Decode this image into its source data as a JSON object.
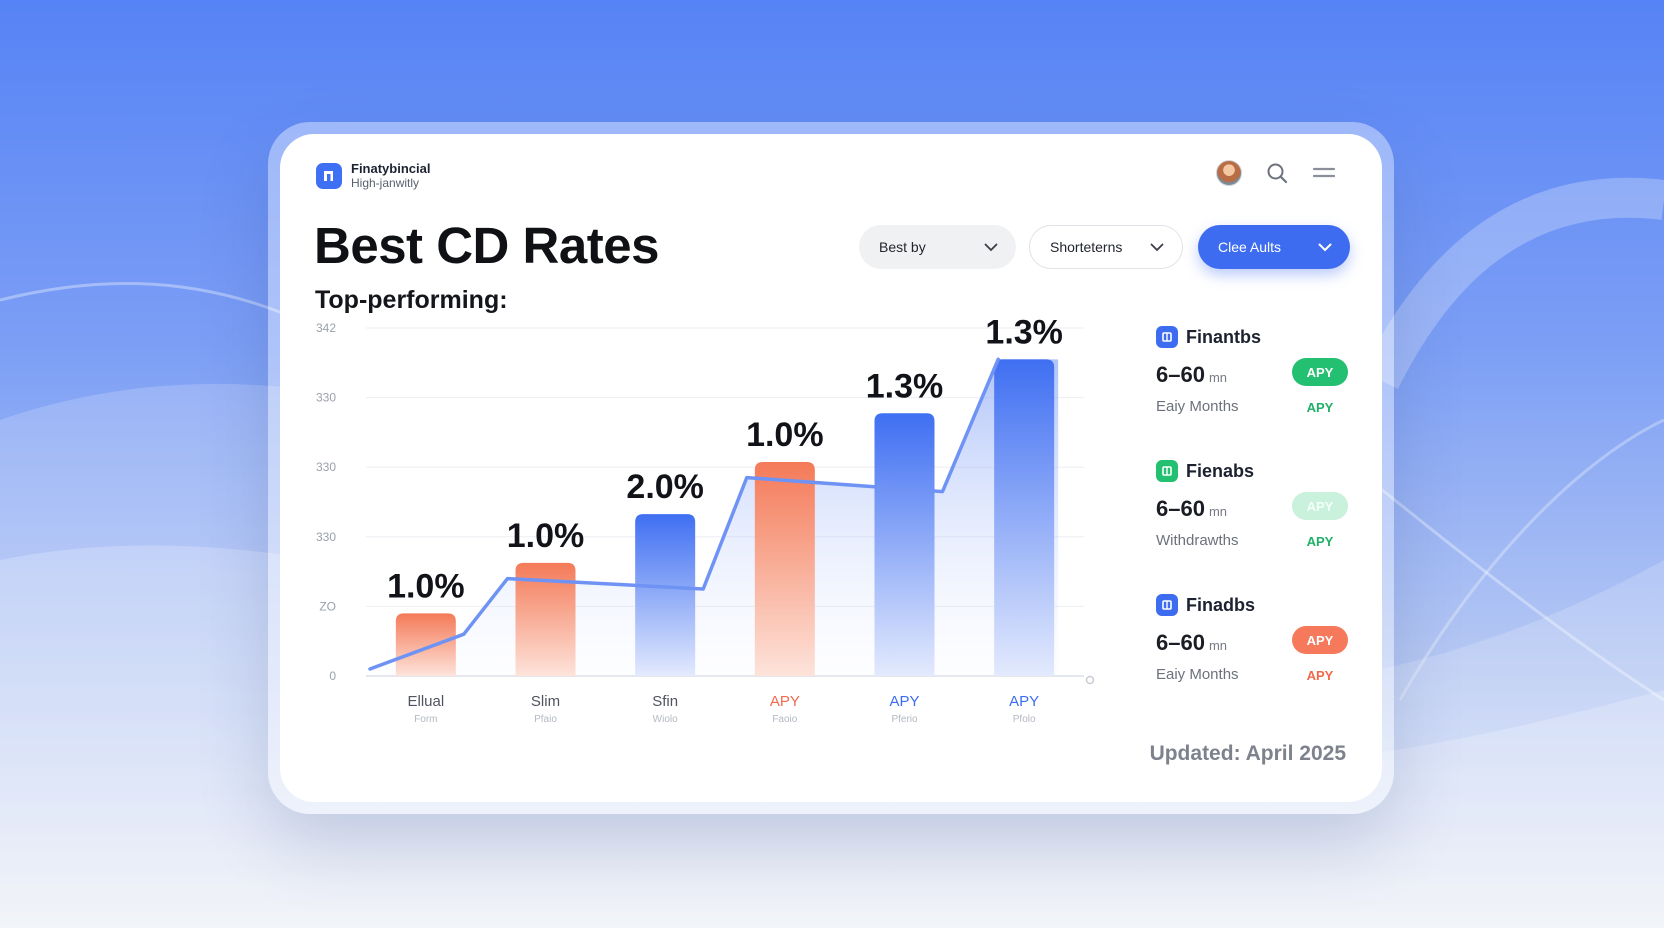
{
  "colors": {
    "accent": "#3d6cf0",
    "orange": "#f5795a",
    "green": "#22c070",
    "green_light": "#c9f1dc"
  },
  "brand": {
    "name": "Finatybincial",
    "tagline": "High-janwitly",
    "logo_icon": "bank-logo-icon"
  },
  "header": {
    "avatar": "user-avatar",
    "search_icon": "search-icon",
    "menu_icon": "hamburger-menu-icon"
  },
  "title": "Best CD Rates",
  "subtitle": "Top-performing:",
  "filters": [
    {
      "label": "Best by"
    },
    {
      "label": "Shorteterns"
    },
    {
      "label": "Clee Aults"
    }
  ],
  "chart_data": {
    "type": "bar",
    "categories": [
      "Ellual",
      "Slim",
      "Sfin",
      "APY",
      "APY",
      "APY"
    ],
    "category_sublabels": [
      "Form",
      "Pfaio",
      "Wiolo",
      "Faoio",
      "Pferio",
      "Pfolo"
    ],
    "values": [
      1.0,
      1.0,
      2.0,
      1.0,
      1.3,
      1.3
    ],
    "data_labels": [
      "1.0%",
      "1.0%",
      "2.0%",
      "1.0%",
      "1.3%",
      "1.3%"
    ],
    "bar_heights": [
      0.18,
      0.325,
      0.465,
      0.615,
      0.755,
      0.91
    ],
    "bar_colors": [
      "orange",
      "orange",
      "blue",
      "orange",
      "blue",
      "blue"
    ],
    "trend_line": [
      0.02,
      0.12,
      0.28,
      0.25,
      0.57,
      0.53,
      0.91
    ],
    "y_tick_labels": [
      "0",
      "ZO",
      "330",
      "330",
      "330",
      "342"
    ],
    "grid": true,
    "legend": "none"
  },
  "offers": [
    {
      "name": "Finantbs",
      "term": "6–60",
      "unit": "mn",
      "note": "Eaiy Months",
      "pill": "APY",
      "apy": "APY",
      "tone": "green",
      "icon": "bank-icon"
    },
    {
      "name": "Fienabs",
      "term": "6–60",
      "unit": "mn",
      "note": "Withdrawths",
      "pill": "APY",
      "apy": "APY",
      "tone": "green_light",
      "icon": "bank-icon"
    },
    {
      "name": "Finadbs",
      "term": "6–60",
      "unit": "mn",
      "note": "Eaiy Months",
      "pill": "APY",
      "apy": "APY",
      "tone": "orange",
      "icon": "bank-icon"
    }
  ],
  "updated": "Updated: April 2025"
}
